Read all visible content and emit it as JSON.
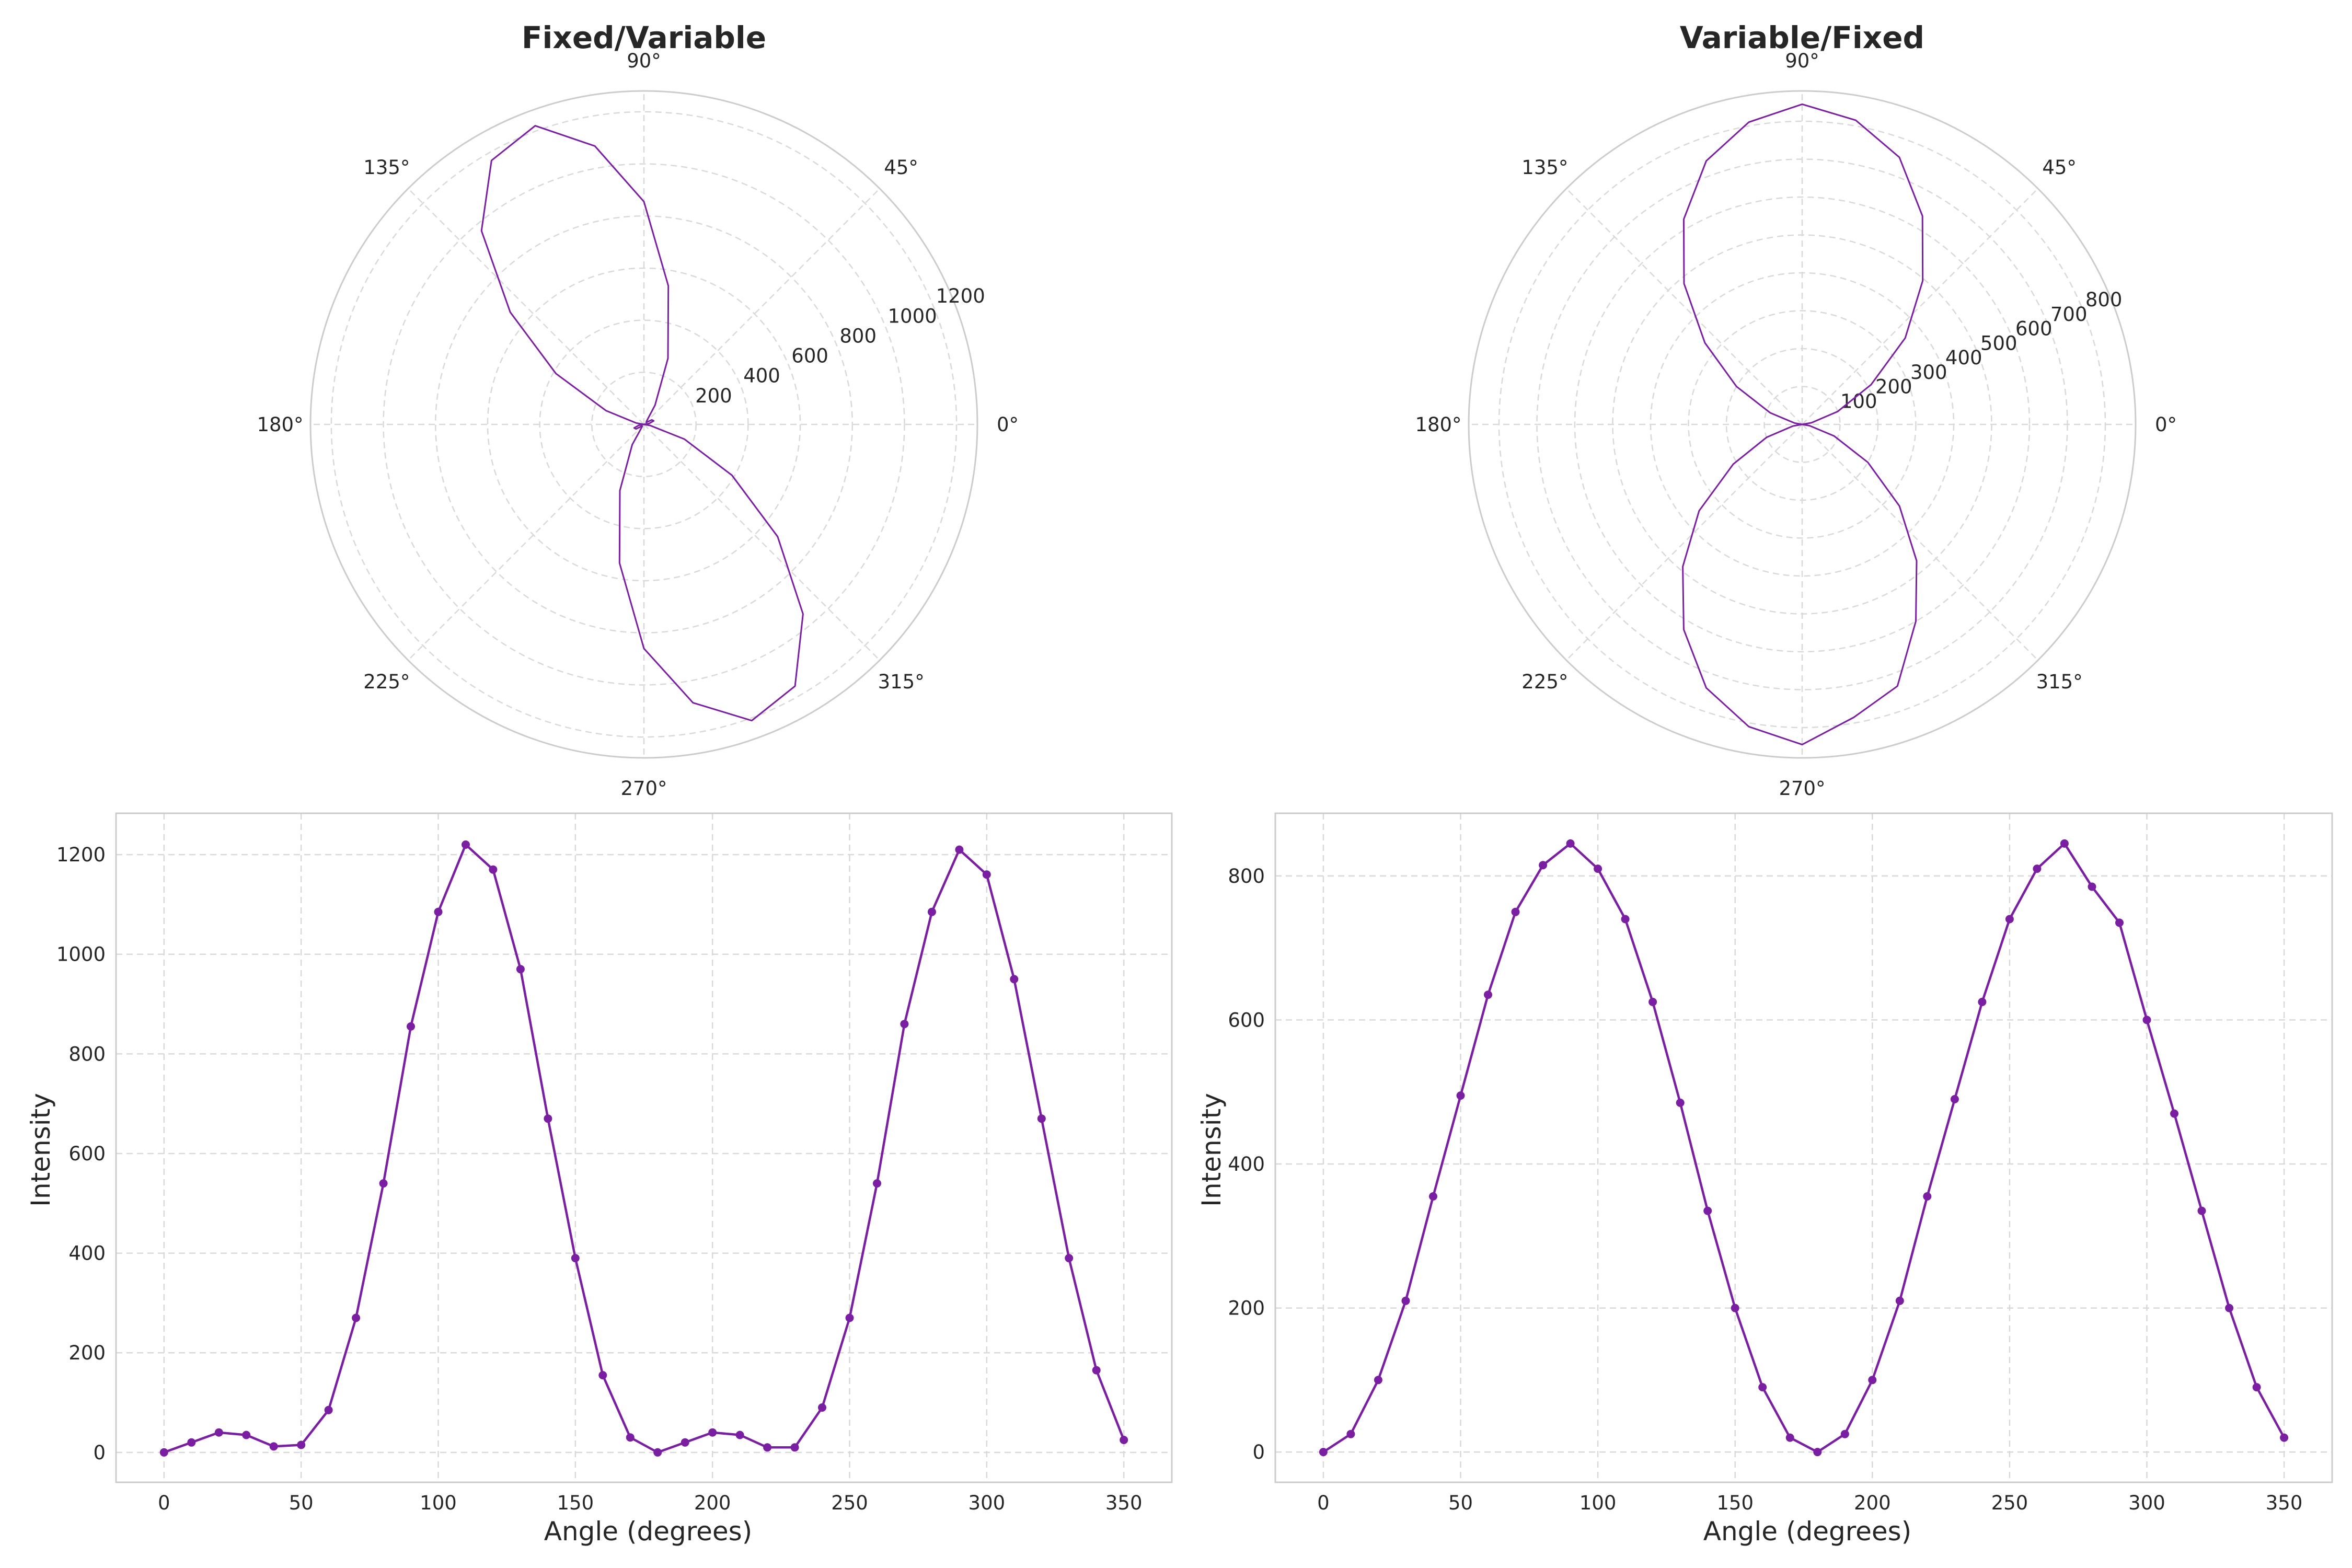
{
  "chart_data": [
    {
      "type": "line",
      "projection": "polar",
      "title": "Fixed/Variable",
      "angle_unit": "degrees",
      "theta_tick_labels": [
        "0°",
        "45°",
        "90°",
        "135°",
        "180°",
        "225°",
        "270°",
        "315°"
      ],
      "r_ticks": [
        200,
        400,
        600,
        800,
        1000,
        1200
      ],
      "r_max": 1280,
      "grid": true,
      "series": [
        {
          "color": "#7b1fa2",
          "x": [
            0,
            10,
            20,
            30,
            40,
            50,
            60,
            70,
            80,
            90,
            100,
            110,
            120,
            130,
            140,
            150,
            160,
            170,
            180,
            190,
            200,
            210,
            220,
            230,
            240,
            250,
            260,
            270,
            280,
            290,
            300,
            310,
            320,
            330,
            340,
            350
          ],
          "values": [
            0,
            20,
            40,
            35,
            12,
            15,
            85,
            270,
            540,
            855,
            1085,
            1220,
            1170,
            970,
            670,
            390,
            155,
            30,
            0,
            20,
            40,
            35,
            10,
            10,
            90,
            270,
            540,
            860,
            1085,
            1210,
            1160,
            950,
            670,
            390,
            165,
            25
          ]
        }
      ]
    },
    {
      "type": "line",
      "projection": "polar",
      "title": "Variable/Fixed",
      "angle_unit": "degrees",
      "theta_tick_labels": [
        "0°",
        "45°",
        "90°",
        "135°",
        "180°",
        "225°",
        "270°",
        "315°"
      ],
      "r_ticks": [
        100,
        200,
        300,
        400,
        500,
        600,
        700,
        800
      ],
      "r_max": 880,
      "grid": true,
      "series": [
        {
          "color": "#7b1fa2",
          "x": [
            0,
            10,
            20,
            30,
            40,
            50,
            60,
            70,
            80,
            90,
            100,
            110,
            120,
            130,
            140,
            150,
            160,
            170,
            180,
            190,
            200,
            210,
            220,
            230,
            240,
            250,
            260,
            270,
            280,
            290,
            300,
            310,
            320,
            330,
            340,
            350
          ],
          "values": [
            0,
            25,
            100,
            210,
            355,
            495,
            635,
            750,
            815,
            845,
            810,
            740,
            625,
            485,
            335,
            200,
            90,
            20,
            0,
            25,
            100,
            210,
            355,
            490,
            625,
            740,
            810,
            845,
            785,
            735,
            600,
            470,
            335,
            200,
            90,
            20
          ]
        }
      ]
    },
    {
      "type": "line",
      "title": "",
      "xlabel": "Angle (degrees)",
      "ylabel": "Intensity",
      "xlim": [
        -17.5,
        367.5
      ],
      "ylim": [
        -60,
        1283
      ],
      "x_ticks": [
        0,
        50,
        100,
        150,
        200,
        250,
        300,
        350
      ],
      "y_ticks": [
        0,
        200,
        400,
        600,
        800,
        1000,
        1200
      ],
      "grid": true,
      "series": [
        {
          "color": "#7b1fa2",
          "x": [
            0,
            10,
            20,
            30,
            40,
            50,
            60,
            70,
            80,
            90,
            100,
            110,
            120,
            130,
            140,
            150,
            160,
            170,
            180,
            190,
            200,
            210,
            220,
            230,
            240,
            250,
            260,
            270,
            280,
            290,
            300,
            310,
            320,
            330,
            340,
            350
          ],
          "values": [
            0,
            20,
            40,
            35,
            12,
            15,
            85,
            270,
            540,
            855,
            1085,
            1220,
            1170,
            970,
            670,
            390,
            155,
            30,
            0,
            20,
            40,
            35,
            10,
            10,
            90,
            270,
            540,
            860,
            1085,
            1210,
            1160,
            950,
            670,
            390,
            165,
            25
          ]
        }
      ]
    },
    {
      "type": "line",
      "title": "",
      "xlabel": "Angle (degrees)",
      "ylabel": "Intensity",
      "xlim": [
        -17.5,
        367.5
      ],
      "ylim": [
        -42,
        887
      ],
      "x_ticks": [
        0,
        50,
        100,
        150,
        200,
        250,
        300,
        350
      ],
      "y_ticks": [
        0,
        200,
        400,
        600,
        800
      ],
      "grid": true,
      "series": [
        {
          "color": "#7b1fa2",
          "x": [
            0,
            10,
            20,
            30,
            40,
            50,
            60,
            70,
            80,
            90,
            100,
            110,
            120,
            130,
            140,
            150,
            160,
            170,
            180,
            190,
            200,
            210,
            220,
            230,
            240,
            250,
            260,
            270,
            280,
            290,
            300,
            310,
            320,
            330,
            340,
            350
          ],
          "values": [
            0,
            25,
            100,
            210,
            355,
            495,
            635,
            750,
            815,
            845,
            810,
            740,
            625,
            485,
            335,
            200,
            90,
            20,
            0,
            25,
            100,
            210,
            355,
            490,
            625,
            740,
            810,
            845,
            785,
            735,
            600,
            470,
            335,
            200,
            90,
            20
          ]
        }
      ]
    }
  ]
}
